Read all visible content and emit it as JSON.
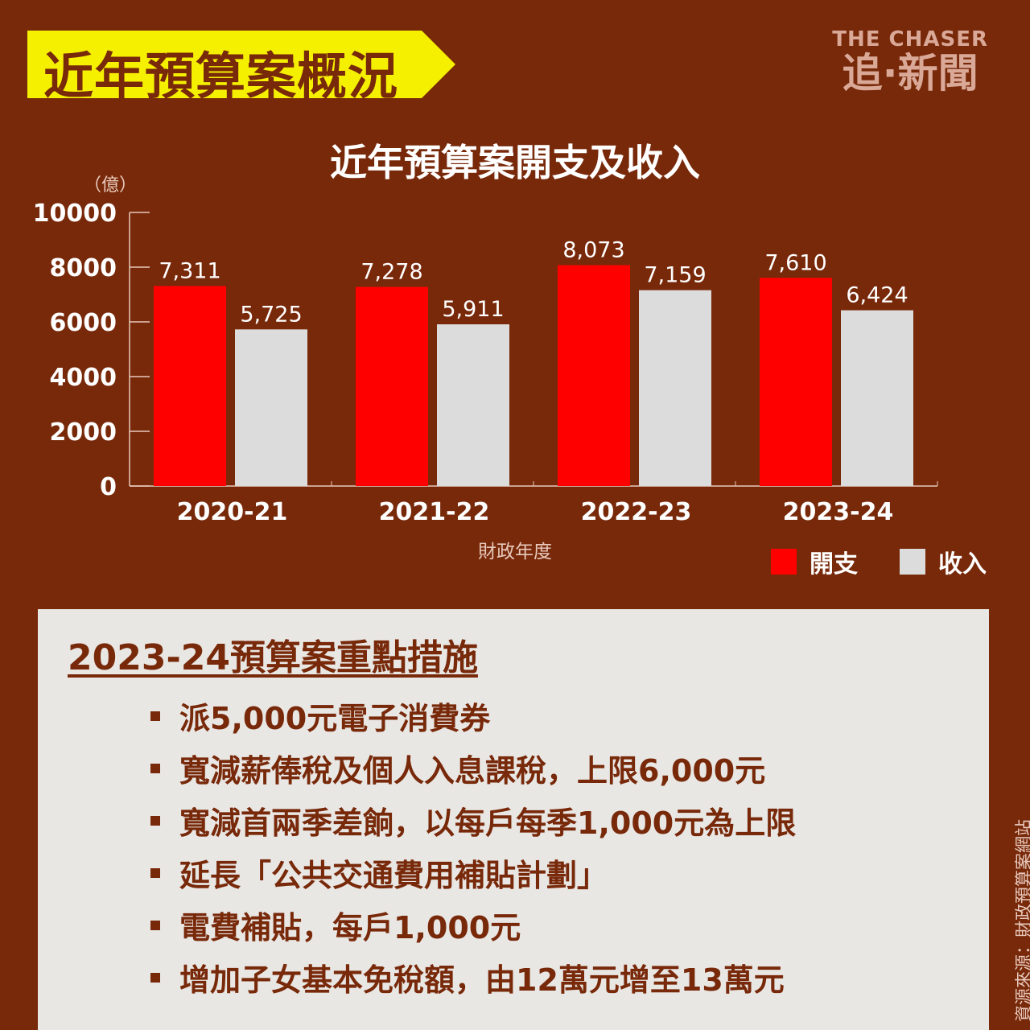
{
  "banner": {
    "title": "近年預算案概況"
  },
  "logo": {
    "en": "THE CHASER",
    "zh": "追·新聞"
  },
  "colors": {
    "background": "#78290a",
    "banner": "#f5ef00",
    "expenditure": "#ff0000",
    "revenue": "#dcdcdc"
  },
  "chart_data": {
    "type": "bar",
    "title": "近年預算案開支及收入",
    "unit": "（億）",
    "xlabel": "財政年度",
    "categories": [
      "2020-21",
      "2021-22",
      "2022-23",
      "2023-24"
    ],
    "series": [
      {
        "name": "開支",
        "values": [
          7311,
          7278,
          8073,
          7610
        ],
        "labels": [
          "7,311",
          "7,278",
          "8,073",
          "7,610"
        ]
      },
      {
        "name": "收入",
        "values": [
          5725,
          5911,
          7159,
          6424
        ],
        "labels": [
          "5,725",
          "5,911",
          "7,159",
          "6,424"
        ]
      }
    ],
    "yticks": [
      "0",
      "2000",
      "4000",
      "6000",
      "8000",
      "10000"
    ],
    "ylim": [
      0,
      10000
    ],
    "legend": "bottom-right",
    "grid": false
  },
  "panel": {
    "title": "2023-24預算案重點措施",
    "items": [
      "派5,000元電子消費券",
      "寬減薪俸稅及個人入息課稅，上限6,000元",
      "寬減首兩季差餉，以每戶每季1,000元為上限",
      "延長「公共交通費用補貼計劃」",
      "電費補貼，每戶1,000元",
      "增加子女基本免稅額，由12萬元增至13萬元"
    ]
  },
  "source": "資源來源：財政預算案網站"
}
